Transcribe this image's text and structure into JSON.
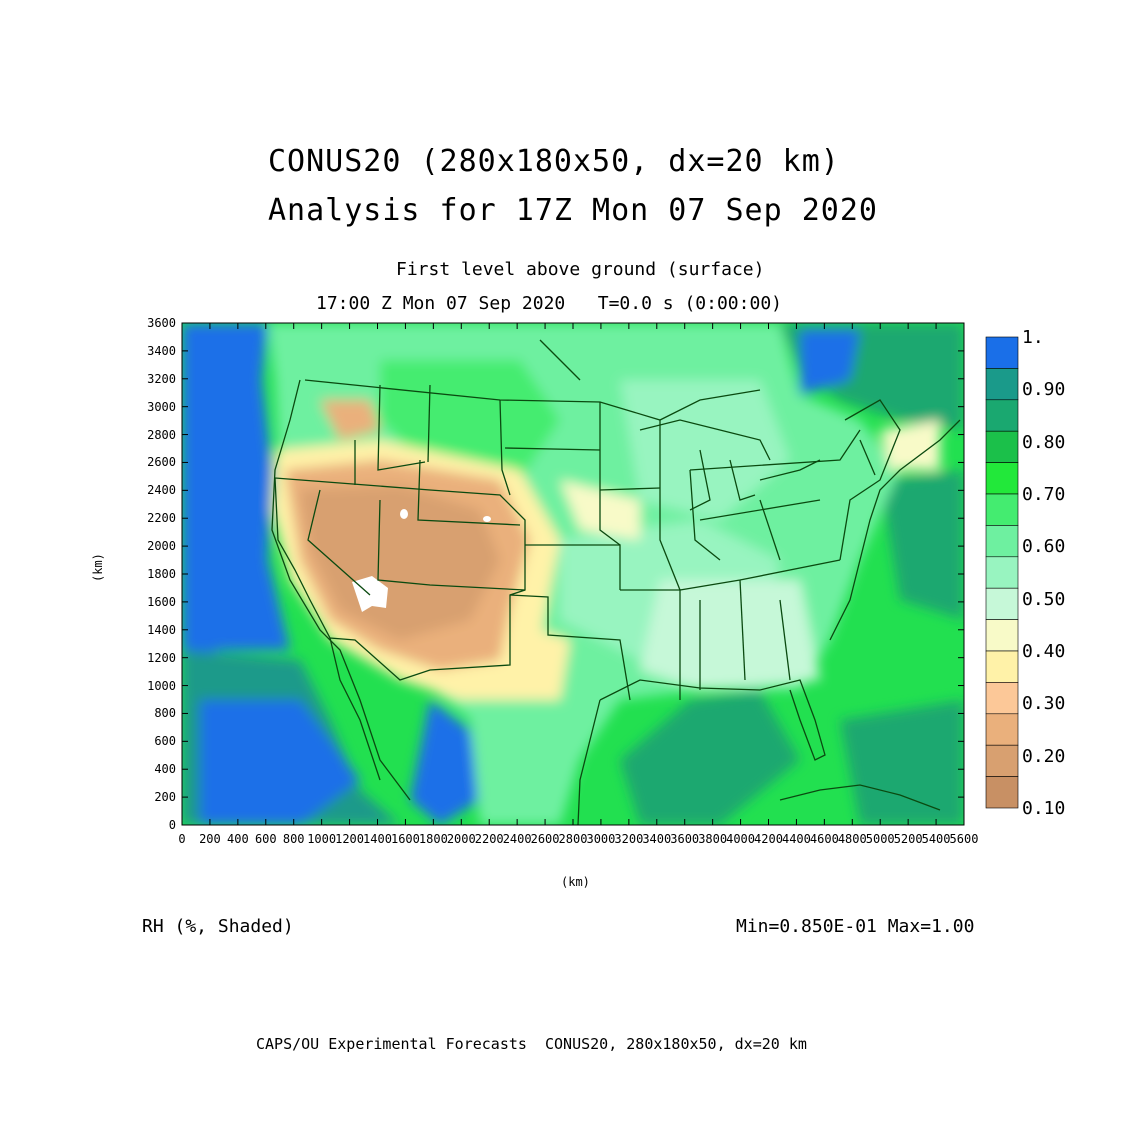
{
  "titles": {
    "line1": "CONUS20 (280x180x50, dx=20 km)",
    "line2": "Analysis for 17Z Mon 07 Sep 2020",
    "subtitle1": "First level above ground (surface)",
    "subtitle2": "17:00 Z Mon 07 Sep 2020   T=0.0 s (0:00:00)"
  },
  "axes": {
    "x_label": "(km)",
    "y_label": "(km)",
    "x_ticks": [
      "0",
      "200",
      "400",
      "600",
      "800",
      "1000",
      "1200",
      "1400",
      "1600",
      "1800",
      "2000",
      "2200",
      "2400",
      "2600",
      "2800",
      "3000",
      "3200",
      "3400",
      "3600",
      "3800",
      "4000",
      "4200",
      "4400",
      "4600",
      "4800",
      "5000",
      "5200",
      "5400",
      "5600"
    ],
    "y_ticks": [
      "0",
      "200",
      "400",
      "600",
      "800",
      "1000",
      "1200",
      "1400",
      "1600",
      "1800",
      "2000",
      "2200",
      "2400",
      "2600",
      "2800",
      "3000",
      "3200",
      "3400",
      "3600"
    ],
    "x_range": [
      0,
      5600
    ],
    "y_range": [
      0,
      3600
    ]
  },
  "colorbar": {
    "labels": [
      "1.",
      "0.90",
      "0.80",
      "0.70",
      "0.60",
      "0.50",
      "0.40",
      "0.30",
      "0.20",
      "0.10"
    ],
    "colors": [
      "#1a6fe8",
      "#1a9a8a",
      "#1aa870",
      "#1bc04a",
      "#22e83a",
      "#44ec70",
      "#6ef0a0",
      "#98f4c0",
      "#c6f8d8",
      "#f8fac8",
      "#fff2a8",
      "#fcc898",
      "#eab07c",
      "#d8a070",
      "#c89064"
    ]
  },
  "footer": {
    "field": "RH (%, Shaded)",
    "minmax": "Min=0.850E-01 Max=1.00",
    "credit": "CAPS/OU Experimental Forecasts  CONUS20, 280x180x50, dx=20 km"
  }
}
